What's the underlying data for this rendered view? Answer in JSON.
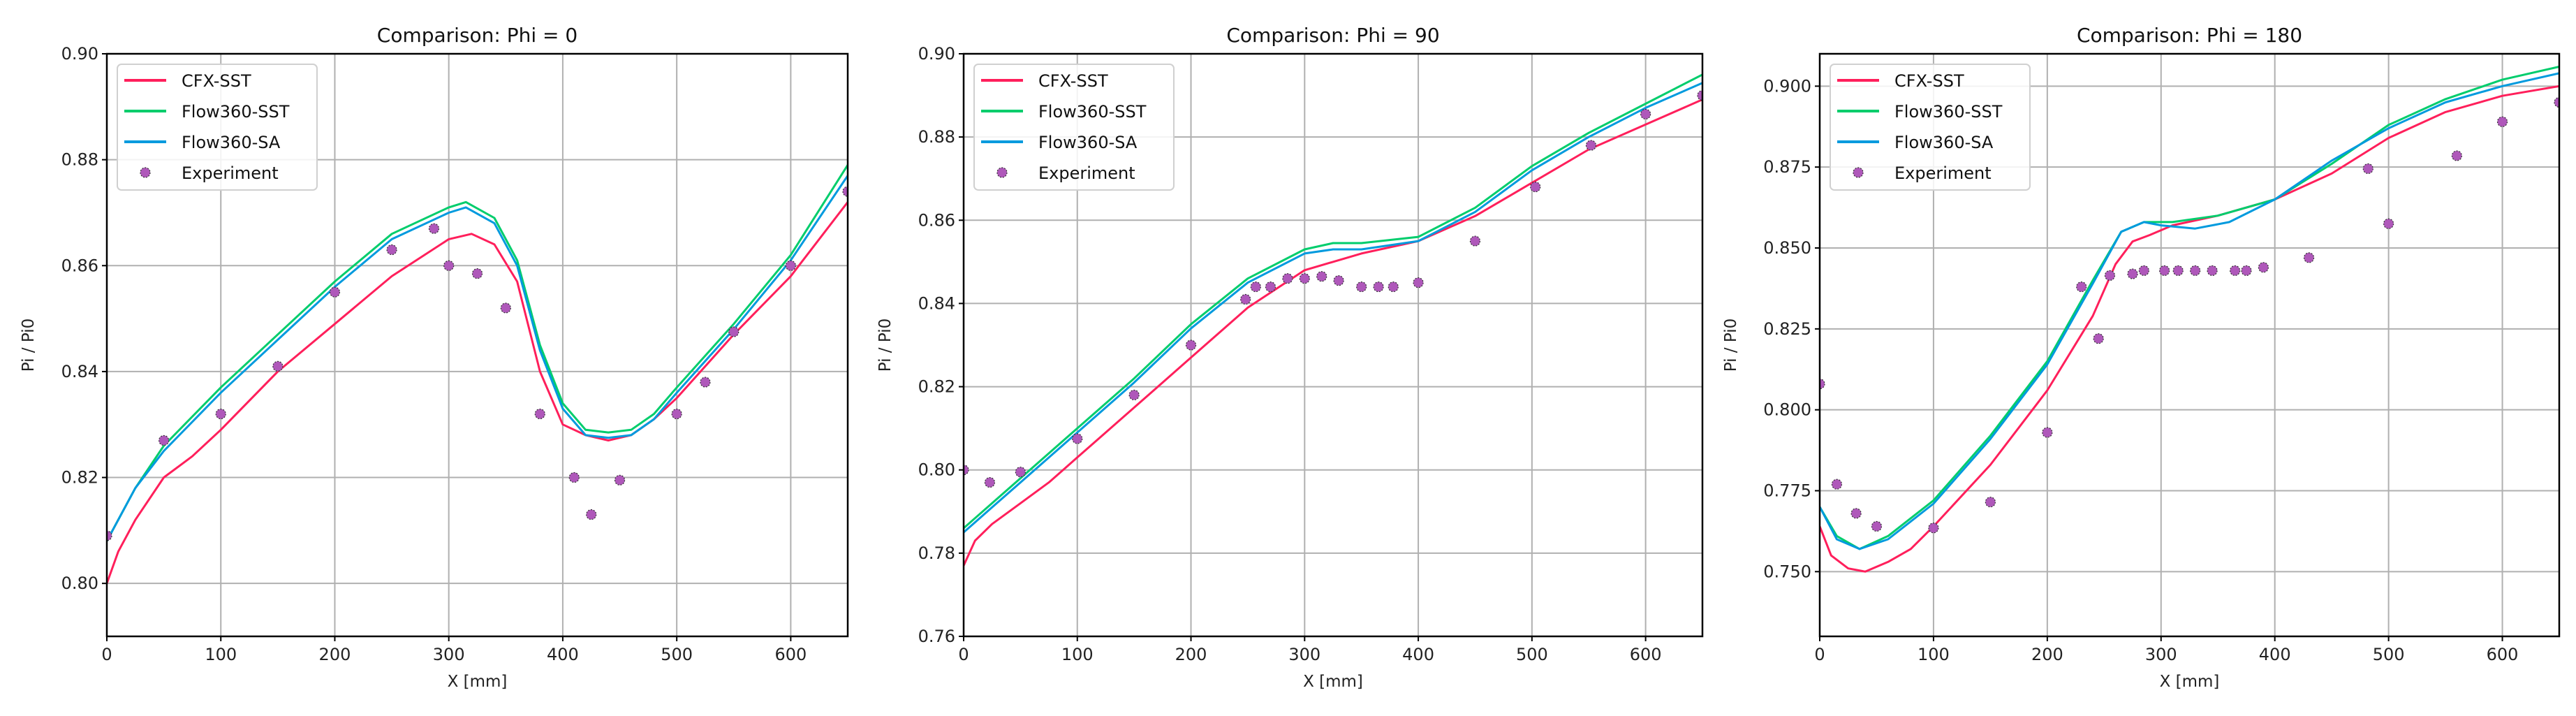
{
  "colors": {
    "CFX-SST": "#ff1f5b",
    "Flow360-SST": "#00cd6c",
    "Flow360-SA": "#009ade",
    "Experiment": "#af58ba"
  },
  "chart_data": [
    {
      "type": "line",
      "title": "Comparison: Phi = 0",
      "xlabel": "X [mm]",
      "ylabel": "Pi / Pi0",
      "xlim": [
        0,
        650
      ],
      "ylim": [
        0.79,
        0.9
      ],
      "xticks": [
        0,
        100,
        200,
        300,
        400,
        500,
        600
      ],
      "yticks": [
        0.8,
        0.82,
        0.84,
        0.86,
        0.88,
        0.9
      ],
      "ytick_labels": [
        "0.80",
        "0.82",
        "0.84",
        "0.86",
        "0.88",
        "0.90"
      ],
      "grid": true,
      "legend_position": "top-left",
      "series": [
        {
          "name": "CFX-SST",
          "kind": "line",
          "x": [
            0,
            10,
            25,
            50,
            75,
            100,
            150,
            200,
            250,
            300,
            320,
            340,
            360,
            380,
            400,
            420,
            440,
            460,
            480,
            500,
            550,
            600,
            650
          ],
          "y": [
            0.8,
            0.806,
            0.812,
            0.82,
            0.824,
            0.829,
            0.84,
            0.849,
            0.858,
            0.865,
            0.866,
            0.864,
            0.857,
            0.84,
            0.83,
            0.828,
            0.827,
            0.828,
            0.831,
            0.835,
            0.847,
            0.858,
            0.872
          ]
        },
        {
          "name": "Flow360-SST",
          "kind": "line",
          "x": [
            0,
            25,
            50,
            100,
            150,
            200,
            250,
            300,
            315,
            340,
            360,
            380,
            400,
            420,
            440,
            460,
            480,
            500,
            550,
            600,
            650
          ],
          "y": [
            0.808,
            0.818,
            0.826,
            0.837,
            0.847,
            0.857,
            0.866,
            0.871,
            0.872,
            0.869,
            0.861,
            0.845,
            0.834,
            0.829,
            0.8285,
            0.829,
            0.832,
            0.837,
            0.849,
            0.862,
            0.879
          ]
        },
        {
          "name": "Flow360-SA",
          "kind": "line",
          "x": [
            0,
            25,
            50,
            100,
            150,
            200,
            250,
            300,
            315,
            340,
            360,
            380,
            400,
            420,
            440,
            460,
            480,
            500,
            550,
            600,
            650
          ],
          "y": [
            0.808,
            0.818,
            0.825,
            0.836,
            0.846,
            0.856,
            0.865,
            0.87,
            0.871,
            0.868,
            0.86,
            0.844,
            0.833,
            0.828,
            0.8275,
            0.828,
            0.831,
            0.836,
            0.848,
            0.861,
            0.877
          ]
        },
        {
          "name": "Experiment",
          "kind": "scatter",
          "x": [
            0,
            50,
            100,
            150,
            200,
            250,
            287,
            300,
            325,
            350,
            380,
            410,
            425,
            450,
            500,
            525,
            550,
            600,
            650
          ],
          "y": [
            0.809,
            0.827,
            0.832,
            0.841,
            0.855,
            0.863,
            0.867,
            0.86,
            0.8585,
            0.852,
            0.832,
            0.82,
            0.813,
            0.8195,
            0.832,
            0.838,
            0.8475,
            0.86,
            0.874
          ]
        }
      ]
    },
    {
      "type": "line",
      "title": "Comparison: Phi = 90",
      "xlabel": "X [mm]",
      "ylabel": "Pi / Pi0",
      "xlim": [
        0,
        650
      ],
      "ylim": [
        0.76,
        0.9
      ],
      "xticks": [
        0,
        100,
        200,
        300,
        400,
        500,
        600
      ],
      "yticks": [
        0.76,
        0.78,
        0.8,
        0.82,
        0.84,
        0.86,
        0.88,
        0.9
      ],
      "ytick_labels": [
        "0.76",
        "0.78",
        "0.80",
        "0.82",
        "0.84",
        "0.86",
        "0.88",
        "0.90"
      ],
      "grid": true,
      "legend_position": "top-left",
      "series": [
        {
          "name": "CFX-SST",
          "kind": "line",
          "x": [
            0,
            10,
            25,
            50,
            75,
            100,
            150,
            200,
            250,
            300,
            350,
            400,
            450,
            500,
            550,
            600,
            650
          ],
          "y": [
            0.777,
            0.783,
            0.787,
            0.792,
            0.797,
            0.803,
            0.815,
            0.827,
            0.839,
            0.848,
            0.852,
            0.855,
            0.861,
            0.869,
            0.877,
            0.883,
            0.889
          ]
        },
        {
          "name": "Flow360-SST",
          "kind": "line",
          "x": [
            0,
            25,
            50,
            100,
            150,
            200,
            250,
            300,
            325,
            350,
            400,
            450,
            500,
            550,
            600,
            650
          ],
          "y": [
            0.786,
            0.792,
            0.798,
            0.81,
            0.822,
            0.835,
            0.846,
            0.853,
            0.8545,
            0.8545,
            0.856,
            0.863,
            0.873,
            0.881,
            0.888,
            0.895
          ]
        },
        {
          "name": "Flow360-SA",
          "kind": "line",
          "x": [
            0,
            25,
            50,
            100,
            150,
            200,
            250,
            300,
            325,
            350,
            400,
            450,
            500,
            550,
            600,
            650
          ],
          "y": [
            0.785,
            0.791,
            0.797,
            0.809,
            0.821,
            0.834,
            0.845,
            0.852,
            0.853,
            0.853,
            0.855,
            0.862,
            0.872,
            0.88,
            0.887,
            0.893
          ]
        },
        {
          "name": "Experiment",
          "kind": "scatter",
          "x": [
            0,
            23,
            50,
            100,
            150,
            200,
            248,
            257,
            270,
            285,
            300,
            315,
            330,
            350,
            365,
            378,
            400,
            450,
            503,
            552,
            600,
            650
          ],
          "y": [
            0.8,
            0.797,
            0.7995,
            0.8075,
            0.818,
            0.83,
            0.841,
            0.844,
            0.844,
            0.846,
            0.846,
            0.8465,
            0.8455,
            0.844,
            0.844,
            0.844,
            0.845,
            0.855,
            0.868,
            0.878,
            0.8855,
            0.89
          ]
        }
      ]
    },
    {
      "type": "line",
      "title": "Comparison: Phi = 180",
      "xlabel": "X [mm]",
      "ylabel": "Pi / Pi0",
      "xlim": [
        0,
        650
      ],
      "ylim": [
        0.73,
        0.91
      ],
      "xticks": [
        0,
        100,
        200,
        300,
        400,
        500,
        600
      ],
      "yticks": [
        0.75,
        0.775,
        0.8,
        0.825,
        0.85,
        0.875,
        0.9
      ],
      "ytick_labels": [
        "0.750",
        "0.775",
        "0.800",
        "0.825",
        "0.850",
        "0.875",
        "0.900"
      ],
      "grid": true,
      "legend_position": "top-left",
      "series": [
        {
          "name": "CFX-SST",
          "kind": "line",
          "x": [
            0,
            10,
            25,
            40,
            60,
            80,
            100,
            150,
            200,
            240,
            260,
            275,
            290,
            310,
            350,
            400,
            450,
            500,
            550,
            600,
            650
          ],
          "y": [
            0.764,
            0.755,
            0.751,
            0.75,
            0.753,
            0.757,
            0.764,
            0.783,
            0.806,
            0.829,
            0.845,
            0.852,
            0.854,
            0.857,
            0.86,
            0.865,
            0.873,
            0.884,
            0.892,
            0.897,
            0.9
          ]
        },
        {
          "name": "Flow360-SST",
          "kind": "line",
          "x": [
            0,
            15,
            35,
            60,
            100,
            150,
            200,
            240,
            265,
            285,
            310,
            350,
            400,
            450,
            500,
            550,
            600,
            650
          ],
          "y": [
            0.77,
            0.761,
            0.757,
            0.761,
            0.772,
            0.792,
            0.815,
            0.84,
            0.855,
            0.858,
            0.858,
            0.86,
            0.865,
            0.876,
            0.888,
            0.896,
            0.902,
            0.906
          ]
        },
        {
          "name": "Flow360-SA",
          "kind": "line",
          "x": [
            0,
            15,
            35,
            60,
            100,
            150,
            200,
            240,
            265,
            285,
            300,
            330,
            360,
            400,
            450,
            500,
            550,
            600,
            650
          ],
          "y": [
            0.77,
            0.76,
            0.757,
            0.76,
            0.771,
            0.791,
            0.814,
            0.839,
            0.855,
            0.858,
            0.857,
            0.856,
            0.858,
            0.865,
            0.877,
            0.887,
            0.895,
            0.9,
            0.904
          ]
        },
        {
          "name": "Experiment",
          "kind": "scatter",
          "x": [
            0,
            15,
            32,
            50,
            100,
            150,
            200,
            230,
            245,
            255,
            275,
            285,
            303,
            315,
            330,
            345,
            365,
            375,
            390,
            430,
            482,
            500,
            560,
            600,
            650
          ],
          "y": [
            0.808,
            0.777,
            0.768,
            0.764,
            0.7635,
            0.7715,
            0.793,
            0.838,
            0.822,
            0.8415,
            0.842,
            0.843,
            0.843,
            0.843,
            0.843,
            0.843,
            0.843,
            0.843,
            0.844,
            0.847,
            0.8745,
            0.8575,
            0.8785,
            0.889,
            0.895
          ]
        }
      ]
    }
  ]
}
